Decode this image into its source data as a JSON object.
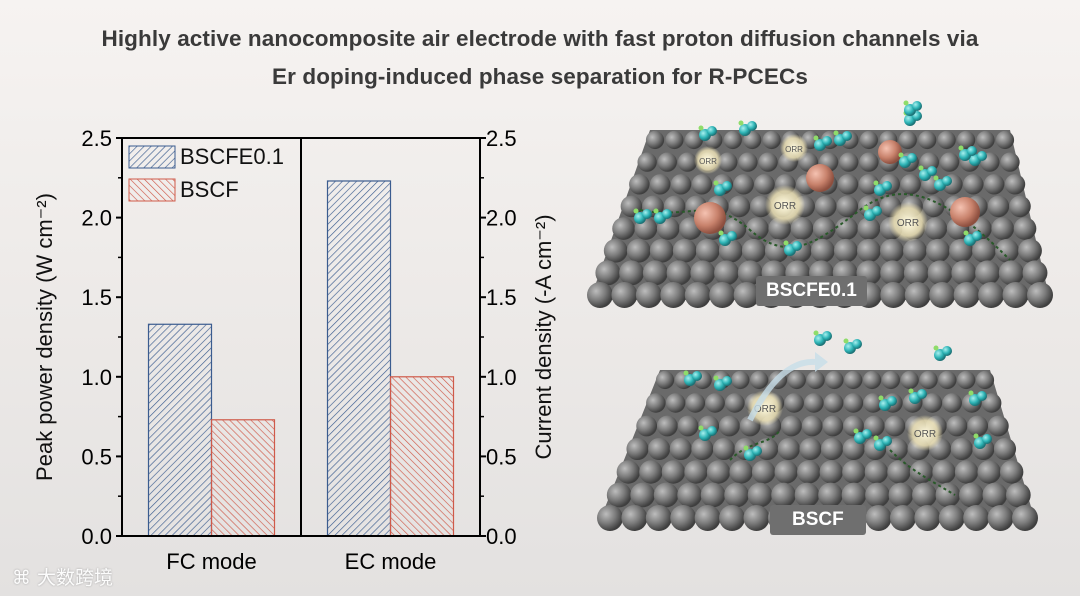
{
  "title_line1": "Highly active nanocomposite air electrode with fast proton diffusion channels via",
  "title_line2": "Er doping-induced phase separation for R-PCECs",
  "chart_data": {
    "type": "bar",
    "categories": [
      "FC mode",
      "EC mode"
    ],
    "series": [
      {
        "name": "BSCFE0.1",
        "values": [
          1.33,
          2.23
        ],
        "color": "#3b5c8f"
      },
      {
        "name": "BSCF",
        "values": [
          0.73,
          1.0
        ],
        "color": "#cf5a4a"
      }
    ],
    "ylabel_left": "Peak power density (W cm⁻²)",
    "ylabel_right": "Current density (-A cm⁻²)",
    "ylim": [
      0,
      2.5
    ],
    "yticks": [
      "0.0",
      "0.5",
      "1.0",
      "1.5",
      "2.0",
      "2.5"
    ],
    "legend_position": "top-left"
  },
  "illustration": {
    "top_label": "BSCFE0.1",
    "bottom_label": "BSCF",
    "reaction_label": "ORR"
  },
  "watermark": "大数跨境"
}
